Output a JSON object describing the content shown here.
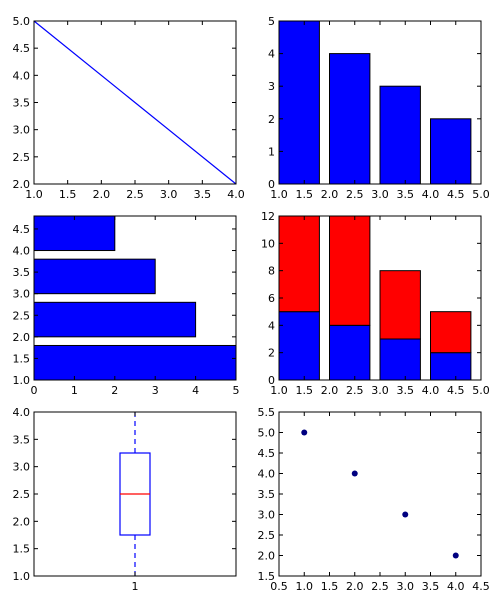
{
  "chart_data": [
    {
      "type": "line",
      "x": [
        1.0,
        4.0
      ],
      "series": [
        {
          "values": [
            5.0,
            2.0
          ],
          "color": "#0000ff"
        }
      ],
      "xlim": [
        1.0,
        4.0
      ],
      "ylim": [
        2.0,
        5.0
      ],
      "xticks": [
        "1.0",
        "1.5",
        "2.0",
        "2.5",
        "3.0",
        "3.5",
        "4.0"
      ],
      "yticks": [
        "2.0",
        "2.5",
        "3.0",
        "3.5",
        "4.0",
        "4.5",
        "5.0"
      ],
      "grid": false
    },
    {
      "type": "bar",
      "x": [
        1,
        2,
        3,
        4
      ],
      "values": [
        5,
        4,
        3,
        2
      ],
      "bar_width": 0.8,
      "color": "#0000ff",
      "xlim": [
        1.0,
        5.0
      ],
      "ylim": [
        0,
        5
      ],
      "xticks": [
        "1.0",
        "1.5",
        "2.0",
        "2.5",
        "3.0",
        "3.5",
        "4.0",
        "4.5",
        "5.0"
      ],
      "yticks": [
        "0",
        "1",
        "2",
        "3",
        "4",
        "5"
      ],
      "grid": false
    },
    {
      "type": "bar",
      "orientation": "horizontal",
      "y": [
        1,
        2,
        3,
        4
      ],
      "values": [
        5,
        4,
        3,
        2
      ],
      "bar_height": 0.8,
      "color": "#0000ff",
      "xlim": [
        0,
        5
      ],
      "ylim": [
        1.0,
        4.8
      ],
      "xticks": [
        "0",
        "1",
        "2",
        "3",
        "4",
        "5"
      ],
      "yticks": [
        "1.0",
        "1.5",
        "2.0",
        "2.5",
        "3.0",
        "3.5",
        "4.0",
        "4.5"
      ],
      "grid": false
    },
    {
      "type": "bar",
      "stacked": true,
      "x": [
        1,
        2,
        3,
        4
      ],
      "bar_width": 0.8,
      "series": [
        {
          "values": [
            5,
            4,
            3,
            2
          ],
          "color": "#0000ff"
        },
        {
          "values": [
            7,
            8,
            5,
            3
          ],
          "color": "#ff0000"
        }
      ],
      "xlim": [
        1.0,
        5.0
      ],
      "ylim": [
        0,
        12
      ],
      "xticks": [
        "1.0",
        "1.5",
        "2.0",
        "2.5",
        "3.0",
        "3.5",
        "4.0",
        "4.5",
        "5.0"
      ],
      "yticks": [
        "0",
        "2",
        "4",
        "6",
        "8",
        "10",
        "12"
      ],
      "grid": false
    },
    {
      "type": "box",
      "categories": [
        "1"
      ],
      "box": {
        "whisker_low": 1.0,
        "q1": 1.75,
        "median": 2.5,
        "q3": 3.25,
        "whisker_high": 4.0
      },
      "box_color": "#0000ff",
      "median_color": "#ff0000",
      "ylim": [
        1.0,
        4.0
      ],
      "yticks": [
        "1.0",
        "1.5",
        "2.0",
        "2.5",
        "3.0",
        "3.5",
        "4.0"
      ],
      "grid": false
    },
    {
      "type": "scatter",
      "x": [
        1,
        2,
        3,
        4
      ],
      "y": [
        5,
        4,
        3,
        2
      ],
      "color": "#000080",
      "xlim": [
        0.5,
        4.5
      ],
      "ylim": [
        1.5,
        5.5
      ],
      "xticks": [
        "0.5",
        "1.0",
        "1.5",
        "2.0",
        "2.5",
        "3.0",
        "3.5",
        "4.0",
        "4.5"
      ],
      "yticks": [
        "1.5",
        "2.0",
        "2.5",
        "3.0",
        "3.5",
        "4.0",
        "4.5",
        "5.0",
        "5.5"
      ],
      "grid": false
    }
  ]
}
